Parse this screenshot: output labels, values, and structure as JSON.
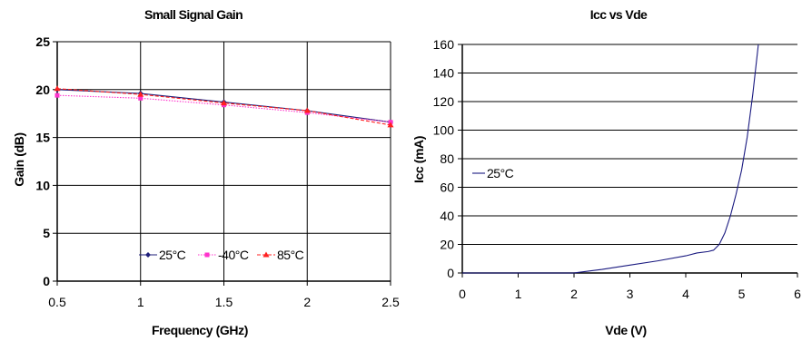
{
  "chart_data": [
    {
      "type": "line",
      "title": "Small Signal Gain",
      "xlabel": "Frequency (GHz)",
      "ylabel": "Gain (dB)",
      "x": [
        0.5,
        1,
        1.5,
        2,
        2.5
      ],
      "xlim": [
        0.5,
        2.5
      ],
      "ylim": [
        0,
        25
      ],
      "x_ticks": [
        "0.5",
        "1",
        "1.5",
        "2",
        "2.5"
      ],
      "y_ticks": [
        "0",
        "5",
        "10",
        "15",
        "20",
        "25"
      ],
      "grid": true,
      "legend_position": "bottom-center",
      "series": [
        {
          "name": "25°C",
          "values": [
            20.0,
            19.6,
            18.7,
            17.8,
            16.6
          ],
          "color": "#1f1f7a",
          "dash": "solid",
          "marker": "diamond"
        },
        {
          "name": "-40°C",
          "values": [
            19.4,
            19.1,
            18.4,
            17.6,
            16.6
          ],
          "color": "#ff33cc",
          "dash": "dotted",
          "marker": "square"
        },
        {
          "name": "85°C",
          "values": [
            20.1,
            19.5,
            18.6,
            17.8,
            16.3
          ],
          "color": "#ff2020",
          "dash": "dashed",
          "marker": "triangle"
        }
      ]
    },
    {
      "type": "line",
      "title": "Icc vs Vde",
      "xlabel": "Vde (V)",
      "ylabel": "Icc (mA)",
      "xlim": [
        0,
        6
      ],
      "ylim": [
        0,
        160
      ],
      "x_ticks": [
        "0",
        "1",
        "2",
        "3",
        "4",
        "5",
        "6"
      ],
      "y_ticks": [
        "0",
        "20",
        "40",
        "60",
        "80",
        "100",
        "120",
        "140",
        "160"
      ],
      "grid": "horizontal",
      "legend_position": "left",
      "series": [
        {
          "name": "25°C",
          "color": "#1a1a80",
          "points": [
            [
              0,
              0
            ],
            [
              1,
              0
            ],
            [
              2,
              0
            ],
            [
              2.5,
              2.5
            ],
            [
              3,
              5.5
            ],
            [
              3.5,
              8.5
            ],
            [
              4,
              12
            ],
            [
              4.2,
              14
            ],
            [
              4.4,
              15
            ],
            [
              4.5,
              16
            ],
            [
              4.6,
              20
            ],
            [
              4.7,
              28
            ],
            [
              4.8,
              40
            ],
            [
              4.9,
              55
            ],
            [
              5.0,
              72
            ],
            [
              5.1,
              95
            ],
            [
              5.2,
              125
            ],
            [
              5.3,
              160
            ]
          ]
        }
      ]
    }
  ]
}
